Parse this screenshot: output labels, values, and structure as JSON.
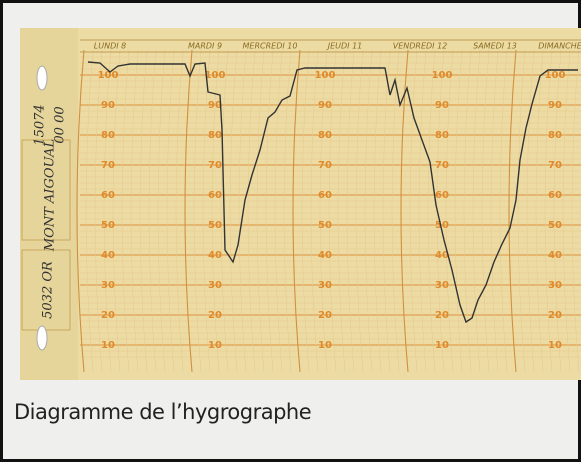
{
  "chart_paper": {
    "day_labels": [
      "LUNDI 8",
      "MARDI 9",
      "MERCREDI 10",
      "JEUDI 11",
      "VENDREDI 12",
      "SAMEDI 13",
      "DIMANCHE"
    ],
    "scale_labels": [
      100,
      90,
      80,
      70,
      60,
      50,
      40,
      30,
      20,
      10
    ],
    "notes": [
      "15074",
      "00 00",
      "MONT AIGOUAL",
      "5032 OR"
    ]
  },
  "caption": "Diagramme de l’hygrographe"
}
